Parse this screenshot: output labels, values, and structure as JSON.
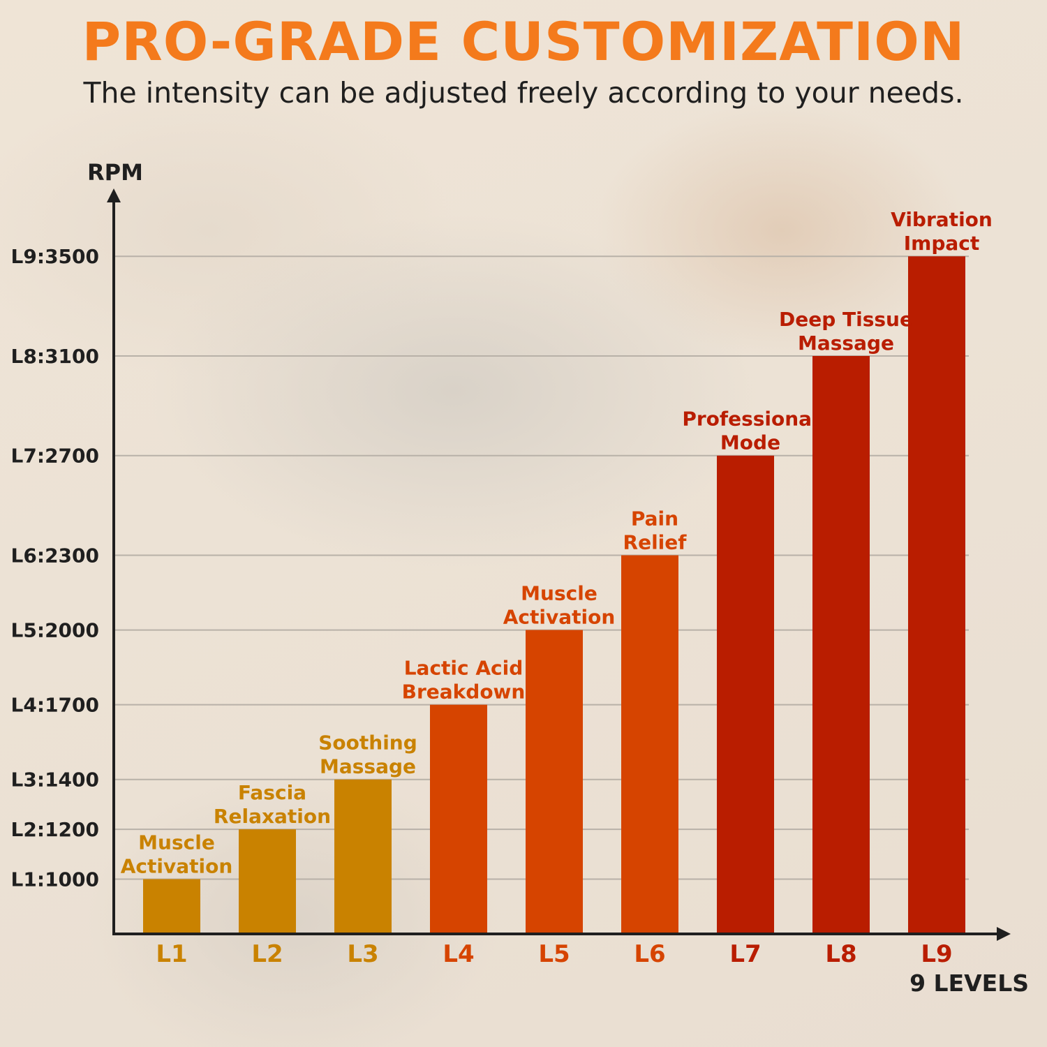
{
  "header": {
    "title": "PRO-GRADE CUSTOMIZATION",
    "subtitle": "The intensity can be adjusted freely according to your needs."
  },
  "colors": {
    "title": "#f47a1c",
    "subtitle": "#1f1f1f",
    "axis": "#1f1f1f",
    "grid": "#b8b1a8",
    "tier_low": "#c98200",
    "tier_mid": "#d64400",
    "tier_high": "#b91d00"
  },
  "chart_data": {
    "type": "bar",
    "ylabel": "RPM",
    "xlabel": "9 LEVELS",
    "ylim": [
      780,
      3750
    ],
    "grid": true,
    "categories": [
      "L1",
      "L2",
      "L3",
      "L4",
      "L5",
      "L6",
      "L7",
      "L8",
      "L9"
    ],
    "values": [
      1000,
      1200,
      1400,
      1700,
      2000,
      2300,
      2700,
      3100,
      3500
    ],
    "tick_labels": [
      "L1:1000",
      "L2:1200",
      "L3:1400",
      "L4:1700",
      "L5:2000",
      "L6:2300",
      "L7:2700",
      "L8:3100",
      "L9:3500"
    ],
    "bar_labels": [
      [
        "Muscle",
        "Activation"
      ],
      [
        "Fascia",
        "Relaxation"
      ],
      [
        "Soothing",
        "Massage"
      ],
      [
        "Lactic Acid",
        "Breakdown"
      ],
      [
        "Muscle",
        "Activation"
      ],
      [
        "Pain",
        "Relief"
      ],
      [
        "Professional",
        "Mode"
      ],
      [
        "Deep Tissue",
        "Massage"
      ],
      [
        "Vibration",
        "Impact"
      ]
    ],
    "tiers": [
      "low",
      "low",
      "low",
      "mid",
      "mid",
      "mid",
      "high",
      "high",
      "high"
    ]
  }
}
